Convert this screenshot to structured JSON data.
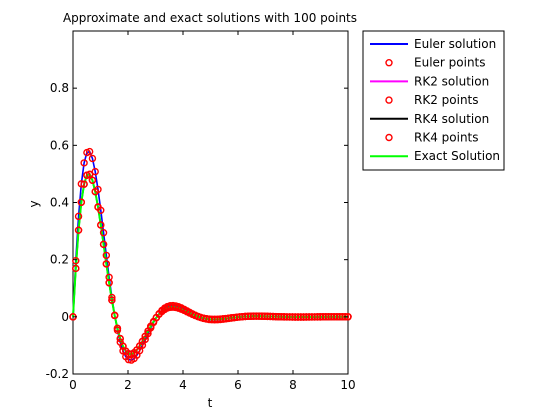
{
  "chart_data": {
    "type": "line",
    "title": "Approximate and exact solutions with 100 points",
    "xlabel": "t",
    "ylabel": "y",
    "xlim": [
      0,
      10
    ],
    "ylim": [
      -0.2,
      1.0
    ],
    "x_ticks": [
      0,
      2,
      4,
      6,
      8,
      10
    ],
    "x_tick_labels": [
      "0",
      "2",
      "4",
      "6",
      "8",
      "10"
    ],
    "y_ticks": [
      -0.2,
      0,
      0.2,
      0.4,
      0.6,
      0.8
    ],
    "y_tick_labels": [
      "-0.2",
      "0",
      "0.2",
      "0.4",
      "0.6",
      "0.8"
    ],
    "grid": false,
    "legend_position": "outside-top-right",
    "series": [
      {
        "name": "Euler solution",
        "style": "line",
        "color": "#0000ff",
        "peak": 0.58,
        "trough": -0.115,
        "second_peak": 0.025
      },
      {
        "name": "Euler points",
        "style": "markers",
        "marker": "circle",
        "color": "#ff0000",
        "peak": 0.58,
        "trough": -0.115,
        "second_peak": 0.025
      },
      {
        "name": "RK2 solution",
        "style": "line",
        "color": "#ff00ff",
        "peak": 0.5,
        "trough": -0.11,
        "second_peak": 0.025
      },
      {
        "name": "RK2 points",
        "style": "markers",
        "marker": "circle",
        "color": "#ff0000",
        "peak": 0.5,
        "trough": -0.11,
        "second_peak": 0.025
      },
      {
        "name": "RK4 solution",
        "style": "line",
        "color": "#000000",
        "peak": 0.5,
        "trough": -0.11,
        "second_peak": 0.025
      },
      {
        "name": "RK4 points",
        "style": "markers",
        "marker": "circle",
        "color": "#ff0000",
        "peak": 0.5,
        "trough": -0.11,
        "second_peak": 0.025
      },
      {
        "name": "Exact Solution",
        "style": "line",
        "color": "#00ff00",
        "peak": 0.5,
        "trough": -0.11,
        "second_peak": 0.025
      }
    ],
    "point_count": 100
  }
}
